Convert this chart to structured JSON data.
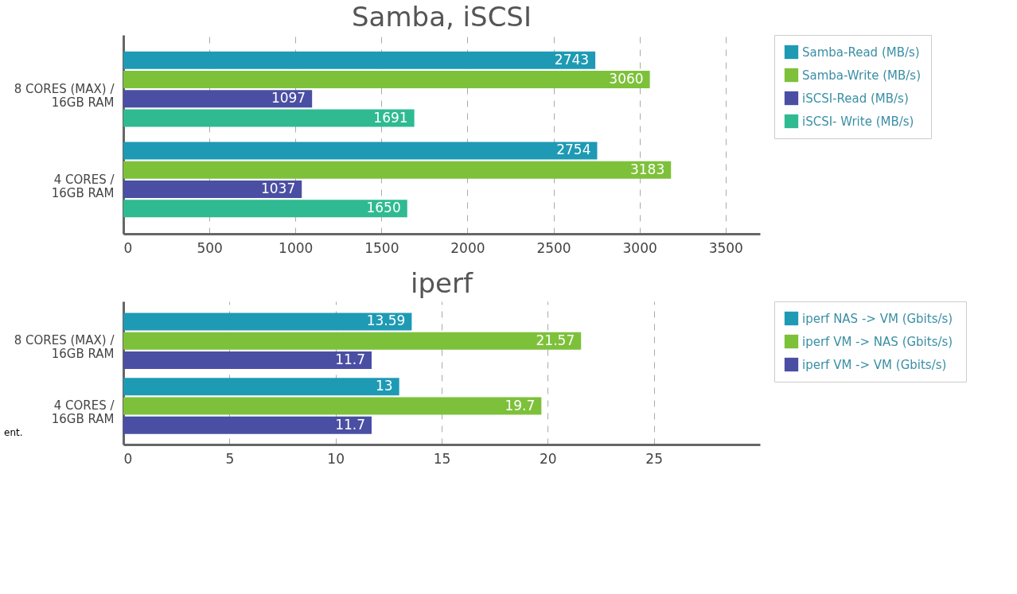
{
  "chart_data": [
    {
      "type": "bar",
      "orientation": "horizontal",
      "title": "Samba, iSCSI",
      "categories": [
        "8 CORES (MAX) / 16GB RAM",
        "4 CORES / 16GB RAM"
      ],
      "series": [
        {
          "name": "Samba-Read (MB/s)",
          "color": "#1e9ab4",
          "values": [
            2743,
            2754
          ]
        },
        {
          "name": "Samba-Write (MB/s)",
          "color": "#7dc13a",
          "values": [
            3060,
            3183
          ]
        },
        {
          "name": "iSCSI-Read (MB/s)",
          "color": "#4a4fa3",
          "values": [
            1097,
            1037
          ]
        },
        {
          "name": "iSCSI- Write (MB/s)",
          "color": "#2fba91",
          "values": [
            1691,
            1650
          ]
        }
      ],
      "xlim": [
        0,
        3700
      ],
      "xticks": [
        0,
        500,
        1000,
        1500,
        2000,
        2500,
        3000,
        3500
      ],
      "grid": "x",
      "legend": "right",
      "data_labels": true
    },
    {
      "type": "bar",
      "orientation": "horizontal",
      "title": "iperf",
      "categories": [
        "8 CORES (MAX) / 16GB RAM",
        "4 CORES / 16GB RAM"
      ],
      "series": [
        {
          "name": "iperf NAS -> VM (Gbits/s)",
          "color": "#1e9ab4",
          "values": [
            13.59,
            13
          ]
        },
        {
          "name": "iperf  VM -> NAS (Gbits/s)",
          "color": "#7dc13a",
          "values": [
            21.57,
            19.7
          ]
        },
        {
          "name": "iperf  VM -> VM (Gbits/s)",
          "color": "#4a4fa3",
          "values": [
            11.7,
            11.7
          ]
        }
      ],
      "xlim": [
        0,
        30
      ],
      "xticks": [
        0,
        5,
        10,
        15,
        20,
        25
      ],
      "grid": "x",
      "legend": "right",
      "data_labels": true,
      "annotations": [
        "ent."
      ]
    }
  ]
}
